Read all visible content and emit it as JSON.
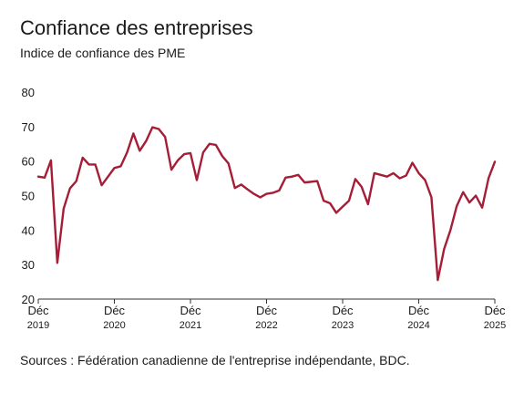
{
  "title": "Confiance des entreprises",
  "subtitle": "Indice de confiance des PME",
  "source": "Sources : Fédération canadienne de l'entreprise indépendante, BDC.",
  "colors": {
    "line": "#a51d36",
    "axis": "#333333"
  },
  "chart_data": {
    "type": "line",
    "title": "Confiance des entreprises",
    "subtitle": "Indice de confiance des PME",
    "ylabel": "",
    "xlabel": "",
    "ylim": [
      20,
      80
    ],
    "yticks": [
      20,
      30,
      40,
      50,
      60,
      70,
      80
    ],
    "grid": false,
    "xticks": [
      {
        "month": 0,
        "label": "Déc",
        "year": "2019"
      },
      {
        "month": 12,
        "label": "Déc",
        "year": "2020"
      },
      {
        "month": 24,
        "label": "Déc",
        "year": "2021"
      },
      {
        "month": 36,
        "label": "Déc",
        "year": "2022"
      },
      {
        "month": 48,
        "label": "Déc",
        "year": "2023"
      },
      {
        "month": 60,
        "label": "Déc",
        "year": "2024"
      },
      {
        "month": 72,
        "label": "Déc",
        "year": "2025"
      }
    ],
    "x": [
      "2019-12",
      "2020-01",
      "2020-02",
      "2020-03",
      "2020-04",
      "2020-05",
      "2020-06",
      "2020-07",
      "2020-08",
      "2020-09",
      "2020-10",
      "2020-11",
      "2020-12",
      "2021-01",
      "2021-02",
      "2021-03",
      "2021-04",
      "2021-05",
      "2021-06",
      "2021-07",
      "2021-08",
      "2021-09",
      "2021-10",
      "2021-11",
      "2021-12",
      "2022-01",
      "2022-02",
      "2022-03",
      "2022-04",
      "2022-05",
      "2022-06",
      "2022-07",
      "2022-08",
      "2022-09",
      "2022-10",
      "2022-11",
      "2022-12",
      "2023-01",
      "2023-02",
      "2023-03",
      "2023-04",
      "2023-05",
      "2023-06",
      "2023-07",
      "2023-08",
      "2023-09",
      "2023-10",
      "2023-11",
      "2023-12",
      "2024-01",
      "2024-02",
      "2024-03",
      "2024-04",
      "2024-05",
      "2024-06",
      "2024-07",
      "2024-08",
      "2024-09",
      "2024-10",
      "2024-11",
      "2024-12",
      "2025-01",
      "2025-02",
      "2025-03",
      "2025-04",
      "2025-05",
      "2025-06",
      "2025-07",
      "2025-08",
      "2025-09",
      "2025-10",
      "2025-11",
      "2025-12"
    ],
    "series": [
      {
        "values": [
          55.5,
          55.2,
          60.2,
          30.5,
          46.2,
          52.1,
          54.2,
          61.0,
          59.0,
          59.0,
          53.0,
          55.5,
          58.0,
          58.5,
          62.5,
          68.0,
          63.0,
          65.8,
          69.8,
          69.3,
          67.0,
          57.5,
          60.2,
          62.0,
          62.3,
          54.5,
          62.5,
          65.0,
          64.7,
          61.5,
          59.3,
          52.2,
          53.2,
          51.8,
          50.5,
          49.5,
          50.5,
          50.8,
          51.5,
          55.2,
          55.5,
          56.0,
          53.8,
          54.0,
          54.2,
          48.5,
          47.8,
          45.0,
          46.8,
          48.5,
          54.8,
          52.5,
          47.5,
          56.5,
          56.0,
          55.5,
          56.5,
          55.0,
          55.8,
          59.5,
          56.5,
          54.5,
          49.5,
          25.5,
          34.5,
          40.0,
          47.0,
          51.0,
          48.0,
          50.0,
          46.5,
          55.0,
          59.8
        ]
      }
    ]
  }
}
